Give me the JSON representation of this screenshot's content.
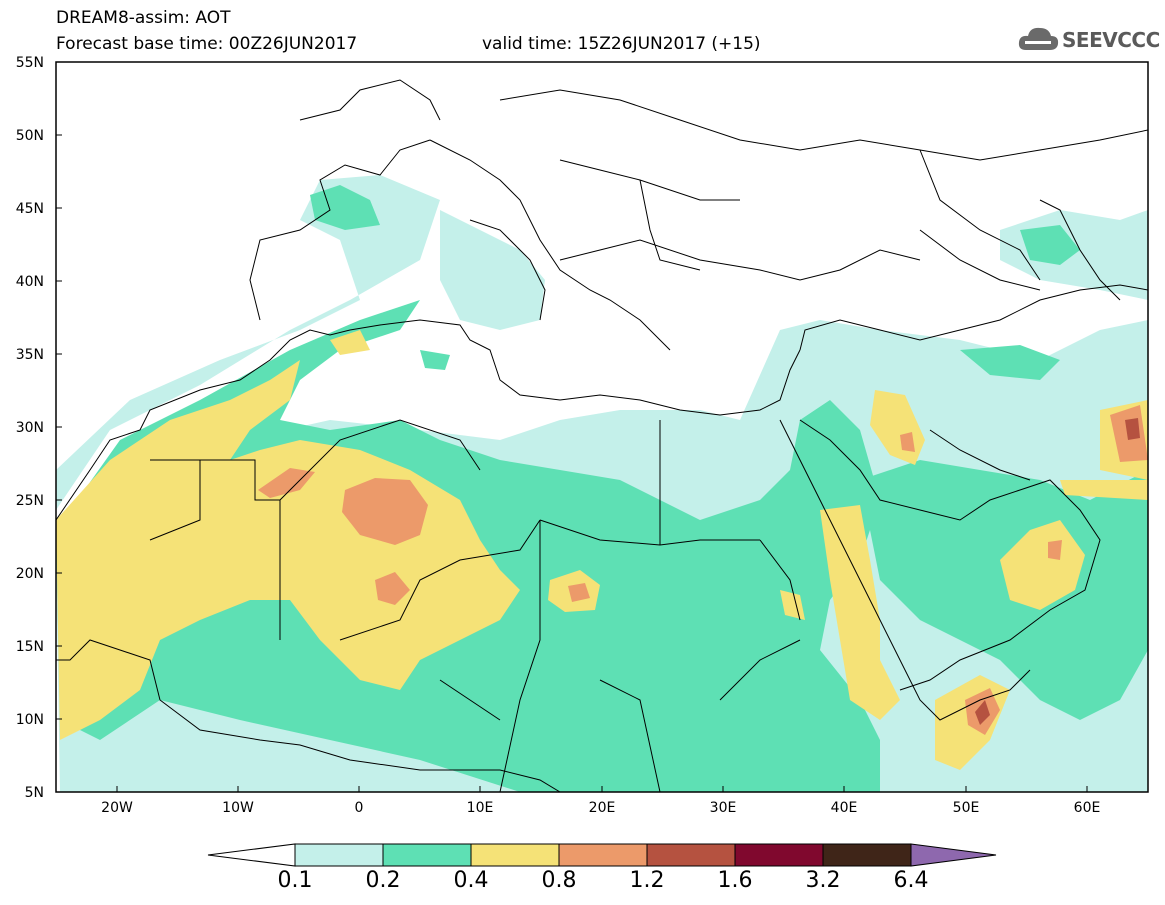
{
  "header": {
    "line1": "DREAM8-assim: AOT",
    "line2": "Forecast base time: 00Z26JUN2017",
    "line3": "valid time: 15Z26JUN2017 (+15)",
    "logo_text": "SEEVCCC"
  },
  "map_data": {
    "variable": "AOT",
    "extent": {
      "lon": [
        -25,
        65
      ],
      "lat": [
        5,
        55
      ]
    },
    "lat_ticks": [
      "55N",
      "50N",
      "45N",
      "40N",
      "35N",
      "30N",
      "25N",
      "20N",
      "15N",
      "10N",
      "5N"
    ],
    "lon_ticks": [
      "20W",
      "10W",
      "0",
      "10E",
      "20E",
      "30E",
      "40E",
      "50E",
      "60E"
    ],
    "colorbar": {
      "levels": [
        "0.1",
        "0.2",
        "0.4",
        "0.8",
        "1.2",
        "1.6",
        "3.2",
        "6.4"
      ],
      "colors": [
        "#c4f0ea",
        "#5ee0b4",
        "#f5e277",
        "#ec9a6a",
        "#b55240",
        "#80082e",
        "#3f2518",
        "#8e68ae"
      ]
    }
  }
}
